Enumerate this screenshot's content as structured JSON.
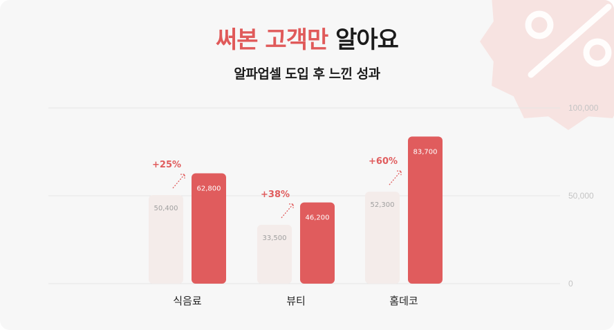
{
  "header": {
    "title_highlight": "써본 고객만",
    "title_rest": " 알아요",
    "subtitle": "알파업셀 도입 후 느낀 성과"
  },
  "decoration": {
    "badge_icon": "percent-badge-icon",
    "badge_color": "#f7e3e1"
  },
  "colors": {
    "before": "#f4ecea",
    "after": "#e05c5d",
    "accent": "#e05c5d",
    "grid": "#e4e4e4",
    "axis_text": "#c4c4c4"
  },
  "chart_data": {
    "type": "bar",
    "categories": [
      "식음료",
      "뷰티",
      "홈데코"
    ],
    "series": [
      {
        "values": [
          50400,
          33500,
          52300
        ]
      },
      {
        "values": [
          62800,
          46200,
          83700
        ]
      }
    ],
    "value_labels": [
      [
        "50,400",
        "33,500",
        "52,300"
      ],
      [
        "62,800",
        "46,200",
        "83,700"
      ]
    ],
    "growth": [
      "+25%",
      "+38%",
      "+60%"
    ],
    "ylim": [
      0,
      100000
    ],
    "yticks": [
      0,
      50000,
      100000
    ],
    "ytick_labels": [
      "0",
      "50,000",
      "100,000"
    ],
    "grid": true
  }
}
